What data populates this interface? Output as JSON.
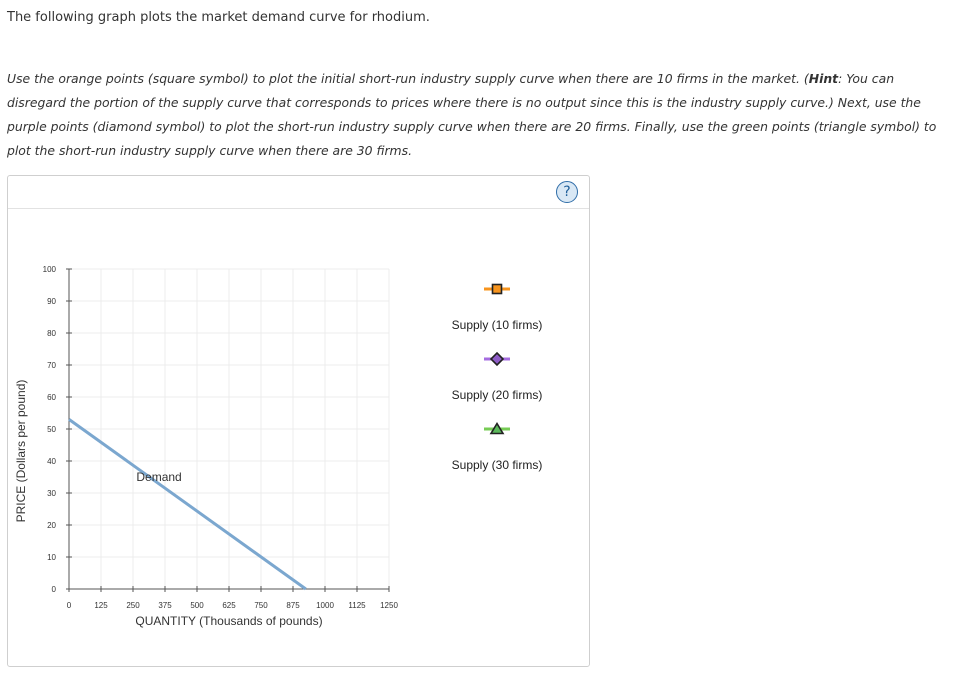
{
  "intro_text": "The following graph plots the market demand curve for rhodium.",
  "instructions": {
    "part1": "Use the orange points (square symbol) to plot the initial short-run industry supply curve when there are 10 firms in the market. (",
    "hint_label": "Hint",
    "part2": ": You can disregard the portion of the supply curve that corresponds to prices where there is no output since this is the industry supply curve.) Next, use the purple points (diamond symbol) to plot the short-run industry supply curve when there are 20 firms. Finally, use the green points (triangle symbol) to plot the short-run industry supply curve when there are 30 firms."
  },
  "help_button": {
    "label": "?"
  },
  "chart_data": {
    "type": "line",
    "xlabel": "QUANTITY (Thousands of pounds)",
    "ylabel": "PRICE (Dollars per pound)",
    "xlim": [
      0,
      1250
    ],
    "ylim": [
      0,
      100
    ],
    "x_ticks": [
      0,
      125,
      250,
      375,
      500,
      625,
      750,
      875,
      1000,
      1125,
      1250
    ],
    "y_ticks": [
      0,
      10,
      20,
      30,
      40,
      50,
      60,
      70,
      80,
      90,
      100
    ],
    "grid": true,
    "series": [
      {
        "name": "Demand",
        "color": "#7ba7cf",
        "points": [
          [
            0,
            53
          ],
          [
            925,
            0
          ]
        ]
      }
    ],
    "annotations": [
      {
        "text": "Demand",
        "x": 310,
        "y": 35
      }
    ],
    "legend_placement": "right",
    "legend": [
      {
        "name": "Supply (10 firms)",
        "symbol": "square",
        "marker_color": "#f7941d",
        "line_color": "#f7941d"
      },
      {
        "name": "Supply (20 firms)",
        "symbol": "diamond",
        "marker_color": "#8e5cc7",
        "line_color": "#a56ce0"
      },
      {
        "name": "Supply (30 firms)",
        "symbol": "triangle",
        "marker_color": "#5bb85b",
        "line_color": "#77cc55"
      }
    ]
  }
}
